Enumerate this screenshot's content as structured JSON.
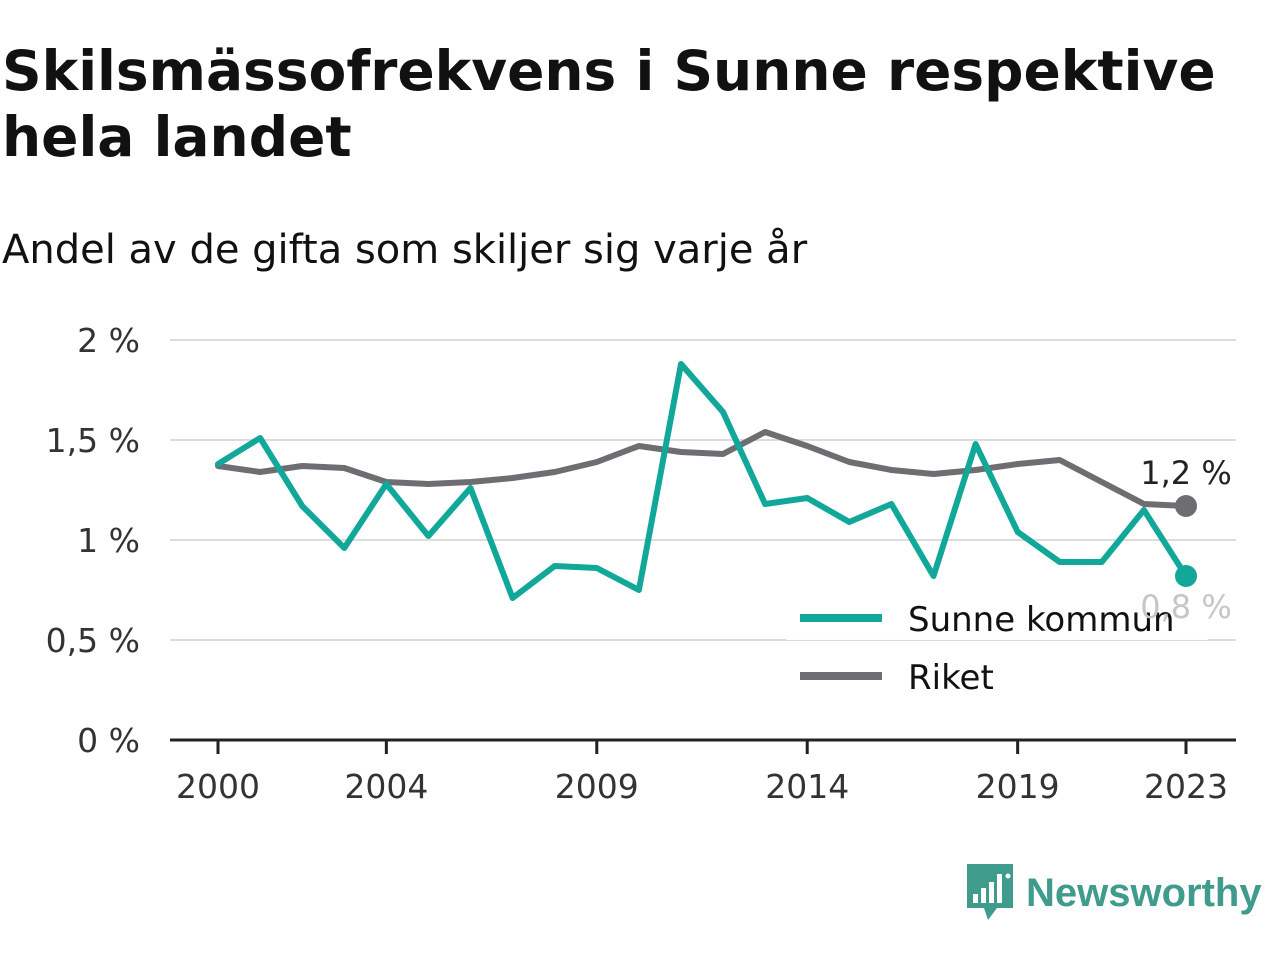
{
  "title": "Skilsmässofrekvens i Sunne respektive hela landet",
  "subtitle": "Andel av de gifta som skiljer sig varje år",
  "brand": {
    "name": "Newsworthy",
    "icon": "newsworthy-logo-icon",
    "color": "#3f9b8c"
  },
  "chart_data": {
    "type": "line",
    "title": "Skilsmässofrekvens i Sunne respektive hela landet",
    "subtitle": "Andel av de gifta som skiljer sig varje år",
    "xlabel": "",
    "ylabel": "",
    "x": [
      2000,
      2001,
      2002,
      2003,
      2004,
      2005,
      2006,
      2007,
      2008,
      2009,
      2010,
      2011,
      2012,
      2013,
      2014,
      2015,
      2016,
      2017,
      2018,
      2019,
      2020,
      2021,
      2022,
      2023
    ],
    "x_ticks": [
      2000,
      2004,
      2009,
      2014,
      2019,
      2023
    ],
    "x_tick_labels": [
      "2000",
      "2004",
      "2009",
      "2014",
      "2019",
      "2023"
    ],
    "ylim": [
      0,
      2
    ],
    "y_ticks": [
      0,
      0.5,
      1,
      1.5,
      2
    ],
    "y_tick_labels": [
      "0 %",
      "0,5 %",
      "1 %",
      "1,5 %",
      "2 %"
    ],
    "grid": true,
    "legend_position": "bottom-right",
    "series": [
      {
        "name": "Sunne kommun",
        "color": "#11a89a",
        "values": [
          1.38,
          1.51,
          1.17,
          0.96,
          1.28,
          1.02,
          1.26,
          0.71,
          0.87,
          0.86,
          0.75,
          1.88,
          1.64,
          1.18,
          1.21,
          1.09,
          1.18,
          0.82,
          1.48,
          1.04,
          0.89,
          0.89,
          1.15,
          0.82
        ],
        "end_label": "0,8 %"
      },
      {
        "name": "Riket",
        "color": "#6e6d72",
        "values": [
          1.37,
          1.34,
          1.37,
          1.36,
          1.29,
          1.28,
          1.29,
          1.31,
          1.34,
          1.39,
          1.47,
          1.44,
          1.43,
          1.54,
          1.47,
          1.39,
          1.35,
          1.33,
          1.35,
          1.38,
          1.4,
          1.29,
          1.18,
          1.17
        ],
        "end_label": "1,2 %"
      }
    ]
  }
}
